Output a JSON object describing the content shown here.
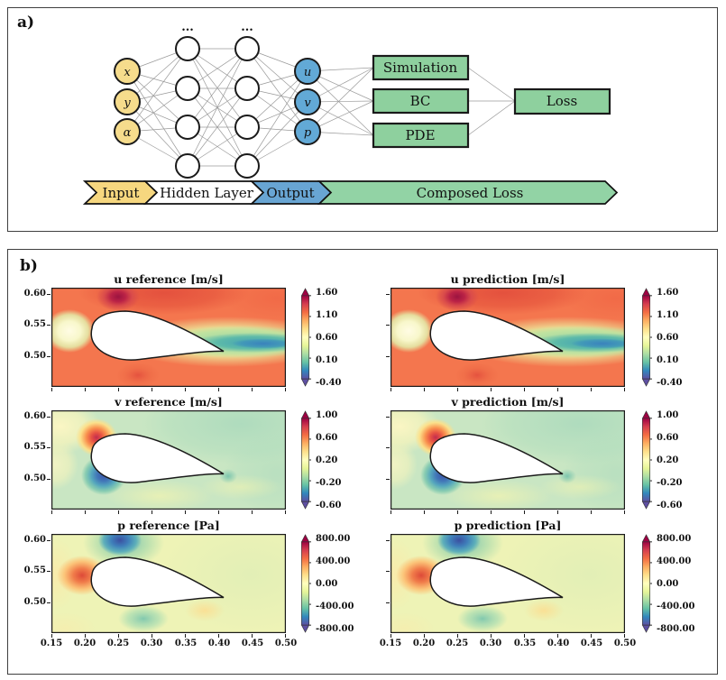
{
  "figure": {
    "panel_a": {
      "label": "a)",
      "ellipsis": "...",
      "input_nodes": [
        {
          "label": "x"
        },
        {
          "label": "y"
        },
        {
          "label": "α"
        }
      ],
      "output_nodes": [
        {
          "label": "u"
        },
        {
          "label": "v"
        },
        {
          "label": "p"
        }
      ],
      "loss_boxes": [
        {
          "label": "Simulation"
        },
        {
          "label": "BC"
        },
        {
          "label": "PDE"
        }
      ],
      "loss_final": {
        "label": "Loss"
      },
      "banner": [
        {
          "label": "Input",
          "color": "#f6d77f"
        },
        {
          "label": "Hidden Layer",
          "color": "#ffffff"
        },
        {
          "label": "Output",
          "color": "#68a5d3"
        },
        {
          "label": "Composed Loss",
          "color": "#92d3a5"
        }
      ],
      "colors": {
        "input_node": "#f6dc8c",
        "hidden_node": "#ffffff",
        "output_node": "#62a9d6",
        "box_green": "#8ed09e"
      }
    },
    "panel_b": {
      "label": "b)",
      "x_ticks": [
        "0.15",
        "0.20",
        "0.25",
        "0.30",
        "0.35",
        "0.40",
        "0.45",
        "0.50"
      ],
      "y_ticks": [
        "0.60",
        "0.55",
        "0.50"
      ],
      "plots": [
        {
          "title": "u reference [m/s]",
          "field": "u",
          "colorbar_ticks": [
            "1.60",
            "1.10",
            "0.60",
            "0.10",
            "-0.40"
          ]
        },
        {
          "title": "u prediction [m/s]",
          "field": "u",
          "colorbar_ticks": [
            "1.60",
            "1.10",
            "0.60",
            "0.10",
            "-0.40"
          ]
        },
        {
          "title": "v reference [m/s]",
          "field": "v",
          "colorbar_ticks": [
            "1.00",
            "0.60",
            "0.20",
            "-0.20",
            "-0.60"
          ]
        },
        {
          "title": "v prediction [m/s]",
          "field": "v",
          "colorbar_ticks": [
            "1.00",
            "0.60",
            "0.20",
            "-0.20",
            "-0.60"
          ]
        },
        {
          "title": "p reference [Pa]",
          "field": "p",
          "colorbar_ticks": [
            "800.00",
            "400.00",
            "0.00",
            "-400.00",
            "-800.00"
          ]
        },
        {
          "title": "p prediction [Pa]",
          "field": "p",
          "colorbar_ticks": [
            "800.00",
            "400.00",
            "0.00",
            "-400.00",
            "-800.00"
          ]
        }
      ]
    }
  },
  "chart_data": [
    {
      "type": "heatmap",
      "title": "u reference [m/s]",
      "units": "m/s",
      "xlim": [
        0.15,
        0.5
      ],
      "ylim": [
        0.45,
        0.61
      ],
      "x_ticks": [
        0.15,
        0.2,
        0.25,
        0.3,
        0.35,
        0.4,
        0.45,
        0.5
      ],
      "y_ticks": [
        0.6,
        0.55,
        0.5
      ],
      "colorbar_ticks": [
        1.6,
        1.1,
        0.6,
        0.1,
        -0.4
      ],
      "colorbar_range": [
        -0.4,
        1.6
      ],
      "colormap": "Spectral reversed (red=high, blue=low)",
      "features": "freestream ~1.0 (orange); suction peak ~1.6 dark red above leading edge; stagnation ~0 pale ahead of nose; blue-green slow wake ~-0.2..0.4 trailing from trailing edge"
    },
    {
      "type": "heatmap",
      "title": "u prediction [m/s]",
      "units": "m/s",
      "xlim": [
        0.15,
        0.5
      ],
      "ylim": [
        0.45,
        0.61
      ],
      "x_ticks": [
        0.15,
        0.2,
        0.25,
        0.3,
        0.35,
        0.4,
        0.45,
        0.5
      ],
      "y_ticks": [
        0.6,
        0.55,
        0.5
      ],
      "colorbar_ticks": [
        1.6,
        1.1,
        0.6,
        0.1,
        -0.4
      ],
      "colorbar_range": [
        -0.4,
        1.6
      ],
      "colormap": "Spectral reversed (red=high, blue=low)",
      "features": "same structure as reference, slightly smoother contours"
    },
    {
      "type": "heatmap",
      "title": "v reference [m/s]",
      "units": "m/s",
      "xlim": [
        0.15,
        0.5
      ],
      "ylim": [
        0.45,
        0.61
      ],
      "x_ticks": [
        0.15,
        0.2,
        0.25,
        0.3,
        0.35,
        0.4,
        0.45,
        0.5
      ],
      "y_ticks": [
        0.6,
        0.55,
        0.5
      ],
      "colorbar_ticks": [
        1.0,
        0.6,
        0.2,
        -0.2,
        -0.6
      ],
      "colorbar_range": [
        -0.6,
        1.0
      ],
      "colormap": "Spectral reversed (red=high, blue=low)",
      "features": "background ~0.1 light green; upward flow ~+1 red-orange above leading edge; downward flow ~-0.6 blue below leading edge; teal upper-right region"
    },
    {
      "type": "heatmap",
      "title": "v prediction [m/s]",
      "units": "m/s",
      "xlim": [
        0.15,
        0.5
      ],
      "ylim": [
        0.45,
        0.61
      ],
      "x_ticks": [
        0.15,
        0.2,
        0.25,
        0.3,
        0.35,
        0.4,
        0.45,
        0.5
      ],
      "y_ticks": [
        0.6,
        0.55,
        0.5
      ],
      "colorbar_ticks": [
        1.0,
        0.6,
        0.2,
        -0.2,
        -0.6
      ],
      "colorbar_range": [
        -0.6,
        1.0
      ],
      "colormap": "Spectral reversed (red=high, blue=low)",
      "features": "same structure as reference, slightly smoother contours"
    },
    {
      "type": "heatmap",
      "title": "p reference [Pa]",
      "units": "Pa",
      "xlim": [
        0.15,
        0.5
      ],
      "ylim": [
        0.45,
        0.61
      ],
      "x_ticks": [
        0.15,
        0.2,
        0.25,
        0.3,
        0.35,
        0.4,
        0.45,
        0.5
      ],
      "y_ticks": [
        0.6,
        0.55,
        0.5
      ],
      "colorbar_ticks": [
        800.0,
        400.0,
        0.0,
        -400.0,
        -800.0
      ],
      "colorbar_range": [
        -800,
        800
      ],
      "colormap": "Spectral reversed (red=high, blue=low)",
      "features": "pale yellow-green ~0 background; low pressure ~-800 dark blue above leading edge; high pressure ~+500 orange stagnation ahead of nose; teal low-pressure pocket under mid-chord"
    },
    {
      "type": "heatmap",
      "title": "p prediction [Pa]",
      "units": "Pa",
      "xlim": [
        0.15,
        0.5
      ],
      "ylim": [
        0.45,
        0.61
      ],
      "x_ticks": [
        0.15,
        0.2,
        0.25,
        0.3,
        0.35,
        0.4,
        0.45,
        0.5
      ],
      "y_ticks": [
        0.6,
        0.55,
        0.5
      ],
      "colorbar_ticks": [
        800.0,
        400.0,
        0.0,
        -400.0,
        -800.0
      ],
      "colorbar_range": [
        -800,
        800
      ],
      "colormap": "Spectral reversed (red=high, blue=low)",
      "features": "same structure as reference, slightly smoother contours"
    }
  ]
}
